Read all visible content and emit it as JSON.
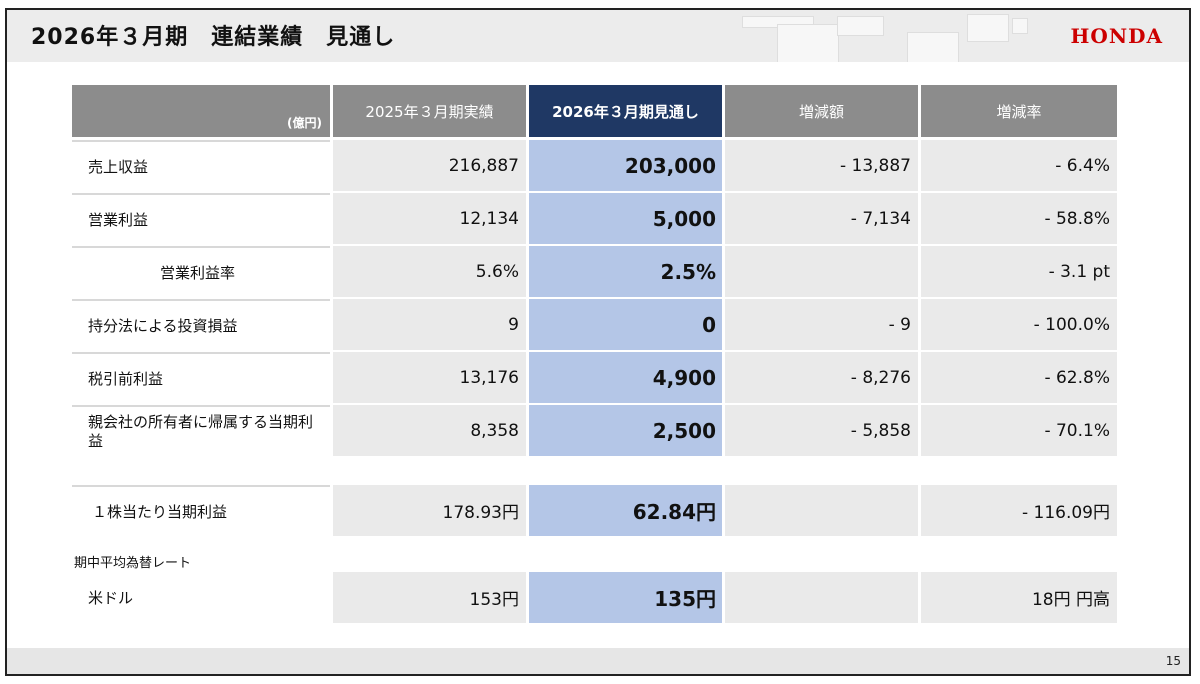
{
  "header": {
    "title": "2026年３月期　連結業績　見通し",
    "logo": "HONDA"
  },
  "footer": {
    "page_number": "15"
  },
  "table": {
    "unit_label": "(億円)",
    "columns": [
      "2025年３月期実績",
      "2026年３月期見通し",
      "増減額",
      "増減率"
    ],
    "rows": [
      {
        "label": "売上収益",
        "values": [
          "216,887",
          "203,000",
          "- 13,887",
          "- 6.4%"
        ]
      },
      {
        "label": "営業利益",
        "values": [
          "12,134",
          "5,000",
          "- 7,134",
          "- 58.8%"
        ]
      },
      {
        "label": "営業利益率",
        "values": [
          "5.6%",
          "2.5%",
          "",
          "- 3.1 pt"
        ]
      },
      {
        "label": "持分法による投資損益",
        "values": [
          "9",
          "0",
          "- 9",
          "- 100.0%"
        ]
      },
      {
        "label": "税引前利益",
        "values": [
          "13,176",
          "4,900",
          "- 8,276",
          "- 62.8%"
        ]
      },
      {
        "label": "親会社の所有者に帰属する当期利益",
        "values": [
          "8,358",
          "2,500",
          "- 5,858",
          "- 70.1%"
        ]
      }
    ],
    "eps_row": {
      "label": "１株当たり当期利益",
      "values": [
        "178.93円",
        "62.84円",
        "",
        "- 116.09円"
      ]
    },
    "fx_heading": "期中平均為替レート",
    "fx_row": {
      "label": "米ドル",
      "values": [
        "153円",
        "135円",
        "",
        "18円 円高"
      ]
    }
  },
  "colors": {
    "header_gray": "#8c8c8c",
    "header_focus": "#1f3864",
    "value_gray": "#eaeaea",
    "value_focus": "#b4c6e7",
    "logo_red": "#cc0000"
  }
}
